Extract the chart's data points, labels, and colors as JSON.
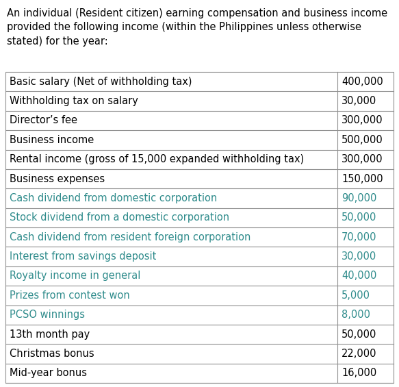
{
  "header_text": "An individual (Resident citizen) earning compensation and business income\nprovided the following income (within the Philippines unless otherwise\nstated) for the year:",
  "rows": [
    {
      "label": "Basic salary (Net of withholding tax)",
      "value": "400,000",
      "color": "black"
    },
    {
      "label": "Withholding tax on salary",
      "value": "30,000",
      "color": "black"
    },
    {
      "label": "Director’s fee",
      "value": "300,000",
      "color": "black"
    },
    {
      "label": "Business income",
      "value": "500,000",
      "color": "black"
    },
    {
      "label": "Rental income (gross of 15,000 expanded withholding tax)",
      "value": "300,000",
      "color": "black"
    },
    {
      "label": "Business expenses",
      "value": "150,000",
      "color": "black"
    },
    {
      "label": "Cash dividend from domestic corporation",
      "value": "90,000",
      "color": "#2e8b8b"
    },
    {
      "label": "Stock dividend from a domestic corporation",
      "value": "50,000",
      "color": "#2e8b8b"
    },
    {
      "label": "Cash dividend from resident foreign corporation",
      "value": "70,000",
      "color": "#2e8b8b"
    },
    {
      "label": "Interest from savings deposit",
      "value": "30,000",
      "color": "#2e8b8b"
    },
    {
      "label": "Royalty income in general",
      "value": "40,000",
      "color": "#2e8b8b"
    },
    {
      "label": "Prizes from contest won",
      "value": "5,000",
      "color": "#2e8b8b"
    },
    {
      "label": "PCSO winnings",
      "value": "8,000",
      "color": "#2e8b8b"
    },
    {
      "label": "13th month pay",
      "value": "50,000",
      "color": "black"
    },
    {
      "label": "Christmas bonus",
      "value": "22,000",
      "color": "black"
    },
    {
      "label": "Mid-year bonus",
      "value": "16,000",
      "color": "black"
    }
  ],
  "bg_color": "#ffffff",
  "border_color": "#909090",
  "header_fontsize": 10.5,
  "row_fontsize": 10.5,
  "fig_width": 5.83,
  "fig_height": 5.65,
  "dpi": 100
}
